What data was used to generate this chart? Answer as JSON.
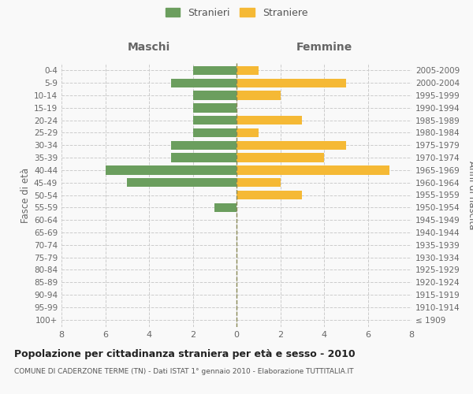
{
  "age_groups": [
    "100+",
    "95-99",
    "90-94",
    "85-89",
    "80-84",
    "75-79",
    "70-74",
    "65-69",
    "60-64",
    "55-59",
    "50-54",
    "45-49",
    "40-44",
    "35-39",
    "30-34",
    "25-29",
    "20-24",
    "15-19",
    "10-14",
    "5-9",
    "0-4"
  ],
  "birth_years": [
    "≤ 1909",
    "1910-1914",
    "1915-1919",
    "1920-1924",
    "1925-1929",
    "1930-1934",
    "1935-1939",
    "1940-1944",
    "1945-1949",
    "1950-1954",
    "1955-1959",
    "1960-1964",
    "1965-1969",
    "1970-1974",
    "1975-1979",
    "1980-1984",
    "1985-1989",
    "1990-1994",
    "1995-1999",
    "2000-2004",
    "2005-2009"
  ],
  "males": [
    0,
    0,
    0,
    0,
    0,
    0,
    0,
    0,
    0,
    1,
    0,
    5,
    6,
    3,
    3,
    2,
    2,
    2,
    2,
    3,
    2
  ],
  "females": [
    0,
    0,
    0,
    0,
    0,
    0,
    0,
    0,
    0,
    0,
    3,
    2,
    7,
    4,
    5,
    1,
    3,
    0,
    2,
    5,
    1
  ],
  "male_color": "#6b9e5e",
  "female_color": "#f5b935",
  "male_label": "Stranieri",
  "female_label": "Straniere",
  "title": "Popolazione per cittadinanza straniera per età e sesso - 2010",
  "subtitle": "COMUNE DI CADERZONE TERME (TN) - Dati ISTAT 1° gennaio 2010 - Elaborazione TUTTITALIA.IT",
  "xlabel_left": "Maschi",
  "xlabel_right": "Femmine",
  "ylabel_left": "Fasce di età",
  "ylabel_right": "Anni di nascita",
  "xlim": 8,
  "background_color": "#f9f9f9",
  "grid_color": "#cccccc"
}
